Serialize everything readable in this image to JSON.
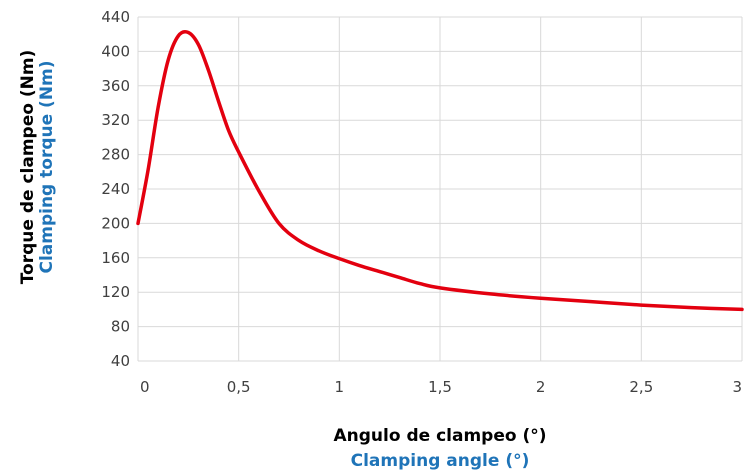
{
  "chart_data": {
    "type": "line",
    "title": "",
    "xlabel": "Angulo de clampeo (°)",
    "xlabel_secondary": "Clamping angle (°)",
    "ylabel": "Torque de clampeo (Nm)",
    "ylabel_secondary": "Clamping torque (Nm)",
    "xlim": [
      0,
      3
    ],
    "ylim": [
      40,
      440
    ],
    "x_ticks": [
      0,
      0.5,
      1,
      1.5,
      2,
      2.5,
      3
    ],
    "x_tick_labels": [
      "0",
      "0,5",
      "1",
      "1,5",
      "2",
      "2,5",
      "3"
    ],
    "y_ticks": [
      40,
      80,
      120,
      160,
      200,
      240,
      280,
      320,
      360,
      400,
      440
    ],
    "y_tick_labels": [
      "40",
      "80",
      "120",
      "160",
      "200",
      "240",
      "280",
      "320",
      "360",
      "400",
      "440"
    ],
    "grid": true,
    "legend": "none",
    "colors": {
      "line": "#e3000f",
      "primary_label": "#000000",
      "secondary_label": "#1f74b8",
      "grid": "#d9d9d9",
      "tick_text": "#404040"
    },
    "series": [
      {
        "x": [
          0,
          0.05,
          0.1,
          0.15,
          0.2,
          0.25,
          0.3,
          0.35,
          0.4,
          0.45,
          0.5,
          0.6,
          0.7,
          0.8,
          0.9,
          1.0,
          1.1,
          1.2,
          1.3,
          1.4,
          1.5,
          1.75,
          2.0,
          2.25,
          2.5,
          2.75,
          3.0
        ],
        "y": [
          200,
          262,
          335,
          390,
          418,
          422,
          408,
          378,
          342,
          308,
          283,
          238,
          200,
          180,
          168,
          159,
          151,
          144,
          137,
          130,
          125,
          118,
          113,
          109,
          105,
          102,
          100
        ]
      }
    ]
  }
}
